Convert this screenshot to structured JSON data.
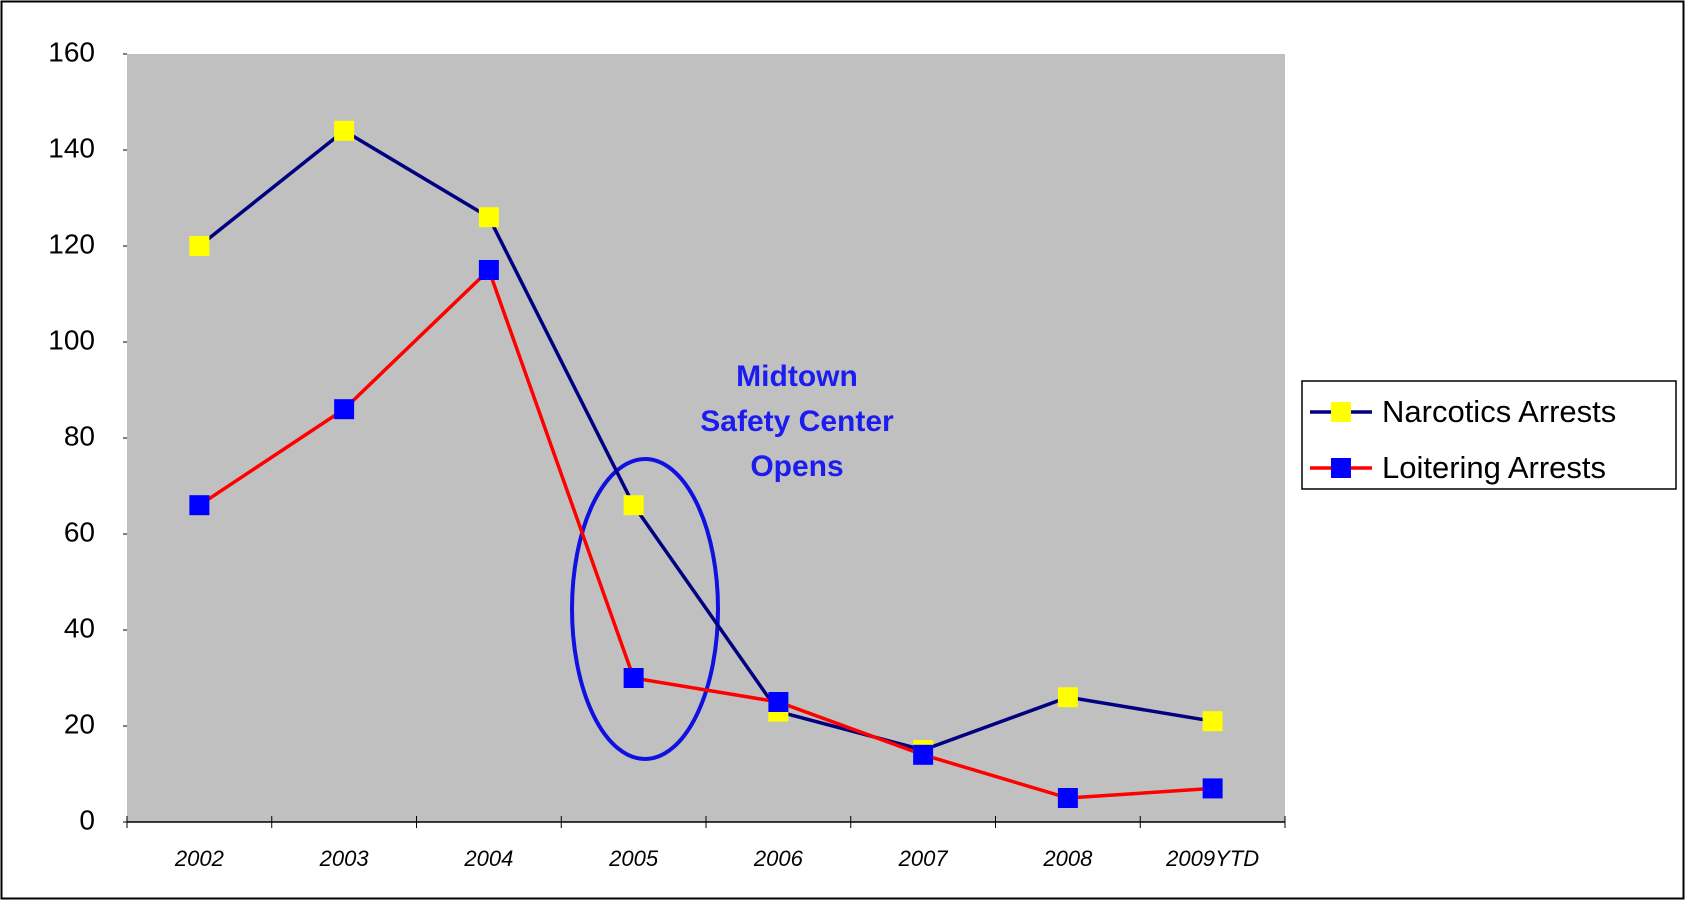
{
  "chart_data": {
    "type": "line",
    "categories": [
      "2002",
      "2003",
      "2004",
      "2005",
      "2006",
      "2007",
      "2008",
      "2009YTD"
    ],
    "series": [
      {
        "name": "Narcotics Arrests",
        "color": "#000080",
        "marker_color": "#ffff00",
        "values": [
          120,
          144,
          126,
          66,
          23,
          15,
          26,
          21
        ]
      },
      {
        "name": "Loitering Arrests",
        "color": "#ff0000",
        "marker_color": "#0000ff",
        "values": [
          66,
          86,
          115,
          30,
          25,
          14,
          5,
          7
        ]
      }
    ],
    "ylim": [
      0,
      160
    ],
    "yticks": [
      0,
      20,
      40,
      60,
      80,
      100,
      120,
      140,
      160
    ],
    "annotation": [
      "Midtown",
      "Safety Center",
      "Opens"
    ],
    "legend": "right",
    "plot_background": "#c0c0c0"
  }
}
